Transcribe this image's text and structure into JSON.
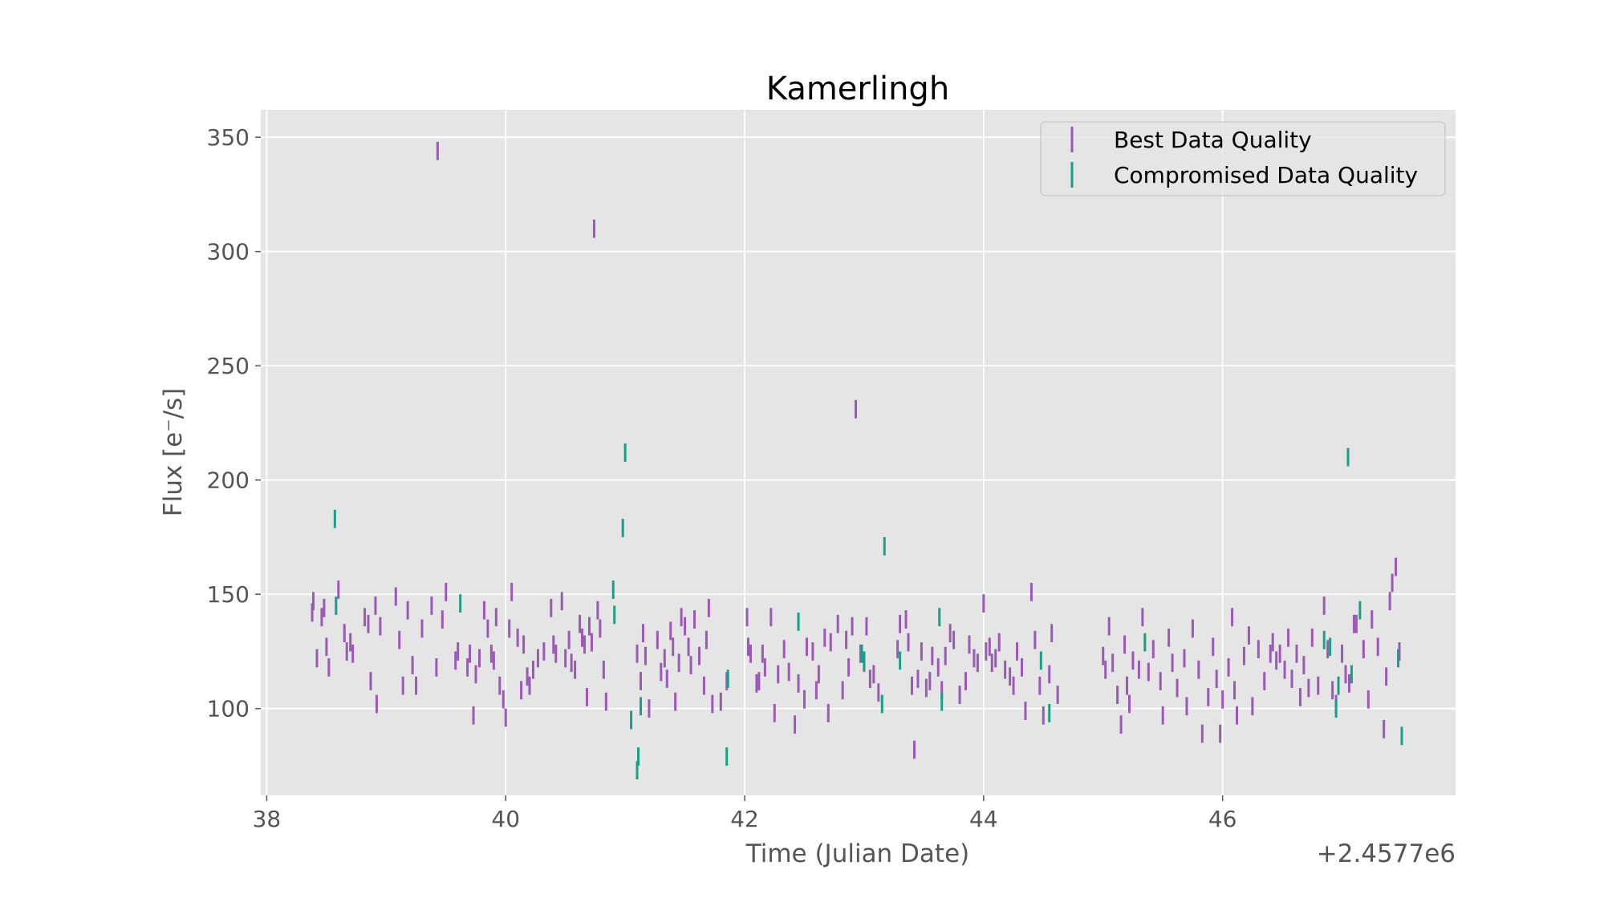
{
  "chart_data": {
    "type": "scatter",
    "title": "Kamerlingh",
    "xlabel": "Time (Julian Date)",
    "ylabel": "Flux [e$^-$/s]",
    "ylabel_display": "Flux [e⁻/s]",
    "x_offset_label": "+2.4577e6",
    "xlim": [
      37.95,
      47.95
    ],
    "ylim": [
      62,
      362
    ],
    "xticks": [
      38,
      40,
      42,
      44,
      46
    ],
    "yticks": [
      100,
      150,
      200,
      250,
      300,
      350
    ],
    "grid": true,
    "background": "#e5e5e5",
    "legend_position": "top-right",
    "series": [
      {
        "name": "Best Data Quality",
        "color": "#9b59b6",
        "err": 4,
        "points": [
          [
            38.38,
            142
          ],
          [
            38.39,
            147
          ],
          [
            38.42,
            122
          ],
          [
            38.46,
            140
          ],
          [
            38.48,
            144
          ],
          [
            38.52,
            118
          ],
          [
            38.5,
            127
          ],
          [
            38.6,
            152
          ],
          [
            38.65,
            133
          ],
          [
            38.67,
            125
          ],
          [
            38.7,
            129
          ],
          [
            38.72,
            124
          ],
          [
            38.82,
            140
          ],
          [
            38.85,
            137
          ],
          [
            38.87,
            112
          ],
          [
            38.91,
            145
          ],
          [
            38.92,
            102
          ],
          [
            38.95,
            136
          ],
          [
            39.08,
            149
          ],
          [
            39.11,
            130
          ],
          [
            39.14,
            110
          ],
          [
            39.18,
            143
          ],
          [
            39.22,
            119
          ],
          [
            39.25,
            110
          ],
          [
            39.3,
            135
          ],
          [
            39.38,
            145
          ],
          [
            39.42,
            118
          ],
          [
            39.43,
            344
          ],
          [
            39.47,
            139
          ],
          [
            39.5,
            151
          ],
          [
            39.58,
            121
          ],
          [
            39.6,
            125
          ],
          [
            39.68,
            118
          ],
          [
            39.7,
            124
          ],
          [
            39.73,
            97
          ],
          [
            39.75,
            115
          ],
          [
            39.78,
            122
          ],
          [
            39.82,
            143
          ],
          [
            39.85,
            135
          ],
          [
            39.88,
            124
          ],
          [
            39.9,
            121
          ],
          [
            39.92,
            140
          ],
          [
            39.95,
            110
          ],
          [
            39.98,
            104
          ],
          [
            40.0,
            96
          ],
          [
            40.03,
            135
          ],
          [
            40.05,
            151
          ],
          [
            40.1,
            131
          ],
          [
            40.13,
            108
          ],
          [
            40.15,
            128
          ],
          [
            40.18,
            114
          ],
          [
            40.2,
            110
          ],
          [
            40.23,
            117
          ],
          [
            40.27,
            122
          ],
          [
            40.32,
            125
          ],
          [
            40.38,
            144
          ],
          [
            40.4,
            128
          ],
          [
            40.42,
            124
          ],
          [
            40.47,
            147
          ],
          [
            40.5,
            122
          ],
          [
            40.53,
            130
          ],
          [
            40.55,
            120
          ],
          [
            40.58,
            117
          ],
          [
            40.62,
            137
          ],
          [
            40.64,
            131
          ],
          [
            40.66,
            128
          ],
          [
            40.68,
            105
          ],
          [
            40.7,
            136
          ],
          [
            40.72,
            129
          ],
          [
            40.74,
            310
          ],
          [
            40.77,
            143
          ],
          [
            40.79,
            135
          ],
          [
            40.82,
            117
          ],
          [
            40.84,
            103
          ],
          [
            41.1,
            124
          ],
          [
            41.13,
            112
          ],
          [
            41.15,
            133
          ],
          [
            41.17,
            123
          ],
          [
            41.2,
            100
          ],
          [
            41.27,
            130
          ],
          [
            41.3,
            116
          ],
          [
            41.33,
            122
          ],
          [
            41.35,
            113
          ],
          [
            41.38,
            134
          ],
          [
            41.4,
            127
          ],
          [
            41.42,
            103
          ],
          [
            41.45,
            120
          ],
          [
            41.47,
            140
          ],
          [
            41.5,
            136
          ],
          [
            41.53,
            127
          ],
          [
            41.55,
            119
          ],
          [
            41.58,
            139
          ],
          [
            41.62,
            123
          ],
          [
            41.66,
            110
          ],
          [
            41.68,
            130
          ],
          [
            41.7,
            144
          ],
          [
            41.73,
            102
          ],
          [
            41.8,
            103
          ],
          [
            41.85,
            112
          ],
          [
            42.02,
            140
          ],
          [
            42.03,
            127
          ],
          [
            42.05,
            124
          ],
          [
            42.1,
            111
          ],
          [
            42.12,
            112
          ],
          [
            42.15,
            124
          ],
          [
            42.17,
            118
          ],
          [
            42.22,
            140
          ],
          [
            42.25,
            98
          ],
          [
            42.28,
            115
          ],
          [
            42.33,
            126
          ],
          [
            42.37,
            116
          ],
          [
            42.42,
            93
          ],
          [
            42.45,
            111
          ],
          [
            42.5,
            104
          ],
          [
            42.52,
            127
          ],
          [
            42.57,
            125
          ],
          [
            42.6,
            108
          ],
          [
            42.62,
            115
          ],
          [
            42.67,
            131
          ],
          [
            42.7,
            98
          ],
          [
            42.72,
            129
          ],
          [
            42.78,
            137
          ],
          [
            42.82,
            108
          ],
          [
            42.85,
            130
          ],
          [
            42.87,
            118
          ],
          [
            42.9,
            136
          ],
          [
            42.93,
            231
          ],
          [
            42.97,
            124
          ],
          [
            43.0,
            120
          ],
          [
            43.02,
            136
          ],
          [
            43.05,
            113
          ],
          [
            43.08,
            115
          ],
          [
            43.12,
            107
          ],
          [
            43.28,
            126
          ],
          [
            43.3,
            137
          ],
          [
            43.35,
            139
          ],
          [
            43.37,
            129
          ],
          [
            43.4,
            110
          ],
          [
            43.42,
            82
          ],
          [
            43.45,
            113
          ],
          [
            43.48,
            125
          ],
          [
            43.52,
            109
          ],
          [
            43.55,
            112
          ],
          [
            43.57,
            123
          ],
          [
            43.62,
            118
          ],
          [
            43.65,
            108
          ],
          [
            43.68,
            123
          ],
          [
            43.72,
            133
          ],
          [
            43.75,
            130
          ],
          [
            43.8,
            106
          ],
          [
            43.85,
            112
          ],
          [
            43.88,
            128
          ],
          [
            43.92,
            122
          ],
          [
            43.95,
            120
          ],
          [
            44.0,
            146
          ],
          [
            44.02,
            125
          ],
          [
            44.05,
            127
          ],
          [
            44.07,
            120
          ],
          [
            44.1,
            122
          ],
          [
            44.13,
            129
          ],
          [
            44.18,
            117
          ],
          [
            44.22,
            114
          ],
          [
            44.25,
            110
          ],
          [
            44.28,
            125
          ],
          [
            44.32,
            118
          ],
          [
            44.35,
            99
          ],
          [
            44.4,
            151
          ],
          [
            44.43,
            130
          ],
          [
            44.47,
            110
          ],
          [
            44.5,
            97
          ],
          [
            44.55,
            115
          ],
          [
            44.57,
            133
          ],
          [
            44.62,
            106
          ],
          [
            45.0,
            123
          ],
          [
            45.02,
            117
          ],
          [
            45.05,
            136
          ],
          [
            45.08,
            120
          ],
          [
            45.12,
            106
          ],
          [
            45.15,
            93
          ],
          [
            45.18,
            128
          ],
          [
            45.2,
            110
          ],
          [
            45.22,
            102
          ],
          [
            45.25,
            121
          ],
          [
            45.3,
            117
          ],
          [
            45.33,
            140
          ],
          [
            45.38,
            116
          ],
          [
            45.42,
            126
          ],
          [
            45.48,
            112
          ],
          [
            45.5,
            97
          ],
          [
            45.55,
            131
          ],
          [
            45.58,
            120
          ],
          [
            45.62,
            109
          ],
          [
            45.68,
            122
          ],
          [
            45.7,
            101
          ],
          [
            45.75,
            135
          ],
          [
            45.8,
            117
          ],
          [
            45.83,
            89
          ],
          [
            45.88,
            105
          ],
          [
            45.92,
            127
          ],
          [
            45.95,
            113
          ],
          [
            45.98,
            89
          ],
          [
            46.0,
            104
          ],
          [
            46.05,
            118
          ],
          [
            46.08,
            140
          ],
          [
            46.1,
            108
          ],
          [
            46.12,
            97
          ],
          [
            46.18,
            123
          ],
          [
            46.22,
            132
          ],
          [
            46.25,
            101
          ],
          [
            46.3,
            126
          ],
          [
            46.35,
            112
          ],
          [
            46.4,
            124
          ],
          [
            46.42,
            129
          ],
          [
            46.45,
            121
          ],
          [
            46.48,
            124
          ],
          [
            46.52,
            117
          ],
          [
            46.55,
            131
          ],
          [
            46.58,
            113
          ],
          [
            46.62,
            124
          ],
          [
            46.65,
            105
          ],
          [
            46.68,
            119
          ],
          [
            46.72,
            109
          ],
          [
            46.75,
            131
          ],
          [
            46.8,
            110
          ],
          [
            46.85,
            145
          ],
          [
            46.88,
            126
          ],
          [
            46.92,
            108
          ],
          [
            46.95,
            102
          ],
          [
            47.0,
            124
          ],
          [
            47.03,
            115
          ],
          [
            47.06,
            111
          ],
          [
            47.1,
            137
          ],
          [
            47.12,
            137
          ],
          [
            47.18,
            126
          ],
          [
            47.22,
            104
          ],
          [
            47.25,
            139
          ],
          [
            47.3,
            127
          ],
          [
            47.35,
            91
          ],
          [
            47.37,
            114
          ],
          [
            47.4,
            147
          ],
          [
            47.42,
            155
          ],
          [
            47.45,
            162
          ],
          [
            47.48,
            125
          ]
        ]
      },
      {
        "name": "Compromised Data Quality",
        "color": "#16a085",
        "err": 4,
        "points": [
          [
            38.57,
            183
          ],
          [
            38.58,
            145
          ],
          [
            39.62,
            146
          ],
          [
            40.9,
            152
          ],
          [
            40.91,
            141
          ],
          [
            40.98,
            179
          ],
          [
            41.0,
            212
          ],
          [
            41.05,
            95
          ],
          [
            41.1,
            73
          ],
          [
            41.11,
            79
          ],
          [
            41.13,
            101
          ],
          [
            41.85,
            79
          ],
          [
            41.86,
            113
          ],
          [
            42.45,
            138
          ],
          [
            42.98,
            124
          ],
          [
            43.0,
            121
          ],
          [
            43.15,
            102
          ],
          [
            43.17,
            171
          ],
          [
            43.3,
            121
          ],
          [
            43.63,
            140
          ],
          [
            43.65,
            103
          ],
          [
            44.48,
            121
          ],
          [
            44.55,
            98
          ],
          [
            45.35,
            129
          ],
          [
            46.85,
            130
          ],
          [
            46.9,
            127
          ],
          [
            46.95,
            100
          ],
          [
            46.97,
            110
          ],
          [
            47.05,
            210
          ],
          [
            47.08,
            115
          ],
          [
            47.15,
            143
          ],
          [
            47.47,
            122
          ],
          [
            47.5,
            88
          ]
        ]
      }
    ]
  }
}
